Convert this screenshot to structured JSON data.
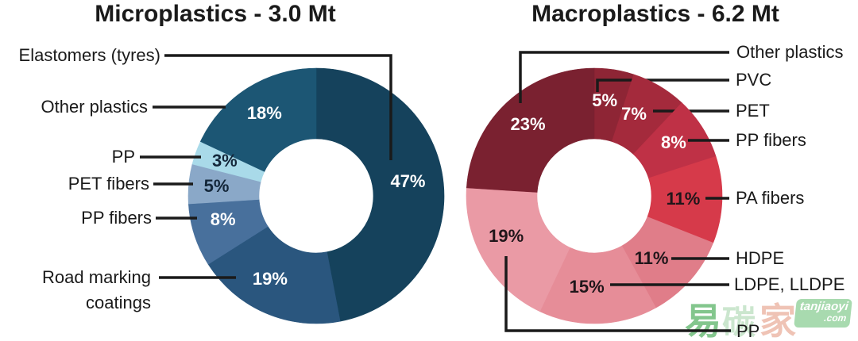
{
  "watermark": {
    "characters": [
      "易",
      "碳",
      "家"
    ],
    "char_colors": [
      "#7dc487",
      "#c9e5cc",
      "#efc0b2"
    ],
    "badge_line1": "tanjiaoyi",
    "badge_line2": ".com",
    "badge_color": "#a4d9ab",
    "badge_text_color": "#ffffff"
  },
  "chart_data": [
    {
      "type": "pie",
      "subtype": "donut",
      "title": "Microplastics - 3.0 Mt",
      "direction": "clockwise",
      "start_angle_deg": 0,
      "unit": "%",
      "legend_position": "callout-labels",
      "segments": [
        {
          "label": "Elastomers (tyres)",
          "value": 47,
          "display": "47%",
          "color": "#15425c",
          "value_text_color": "#ffffff"
        },
        {
          "label": "Road marking coatings",
          "value": 19,
          "display": "19%",
          "color": "#2a567e",
          "value_text_color": "#ffffff"
        },
        {
          "label": "PP fibers",
          "value": 8,
          "display": "8%",
          "color": "#48709c",
          "value_text_color": "#ffffff"
        },
        {
          "label": "PET fibers",
          "value": 5,
          "display": "5%",
          "color": "#8aa8c8",
          "value_text_color": "#14273a"
        },
        {
          "label": "PP",
          "value": 3,
          "display": "3%",
          "color": "#a9dae9",
          "value_text_color": "#14273a"
        },
        {
          "label": "Other plastics",
          "value": 18,
          "display": "18%",
          "color": "#1c5674",
          "value_text_color": "#ffffff"
        }
      ]
    },
    {
      "type": "pie",
      "subtype": "donut",
      "title": "Macroplastics - 6.2 Mt",
      "direction": "clockwise",
      "start_angle_deg": 0,
      "unit": "%",
      "legend_position": "callout-labels",
      "segments": [
        {
          "label": "PVC",
          "value": 5,
          "display": "5%",
          "color": "#8e2535",
          "value_text_color": "#ffffff"
        },
        {
          "label": "PET",
          "value": 7,
          "display": "7%",
          "color": "#a42a3c",
          "value_text_color": "#ffffff"
        },
        {
          "label": "PP fibers",
          "value": 8,
          "display": "8%",
          "color": "#bf3146",
          "value_text_color": "#ffffff"
        },
        {
          "label": "PA fibers",
          "value": 11,
          "display": "11%",
          "color": "#d63a4a",
          "value_text_color": "#20161a"
        },
        {
          "label": "HDPE",
          "value": 11,
          "display": "11%",
          "color": "#e07d89",
          "value_text_color": "#20161a"
        },
        {
          "label": "LDPE, LLDPE",
          "value": 15,
          "display": "15%",
          "color": "#e68d98",
          "value_text_color": "#20161a"
        },
        {
          "label": "PP",
          "value": 19,
          "display": "19%",
          "color": "#ea9aa5",
          "value_text_color": "#20161a"
        },
        {
          "label": "Other plastics",
          "value": 23,
          "display": "23%",
          "color": "#7a2130",
          "value_text_color": "#ffffff"
        }
      ]
    }
  ]
}
